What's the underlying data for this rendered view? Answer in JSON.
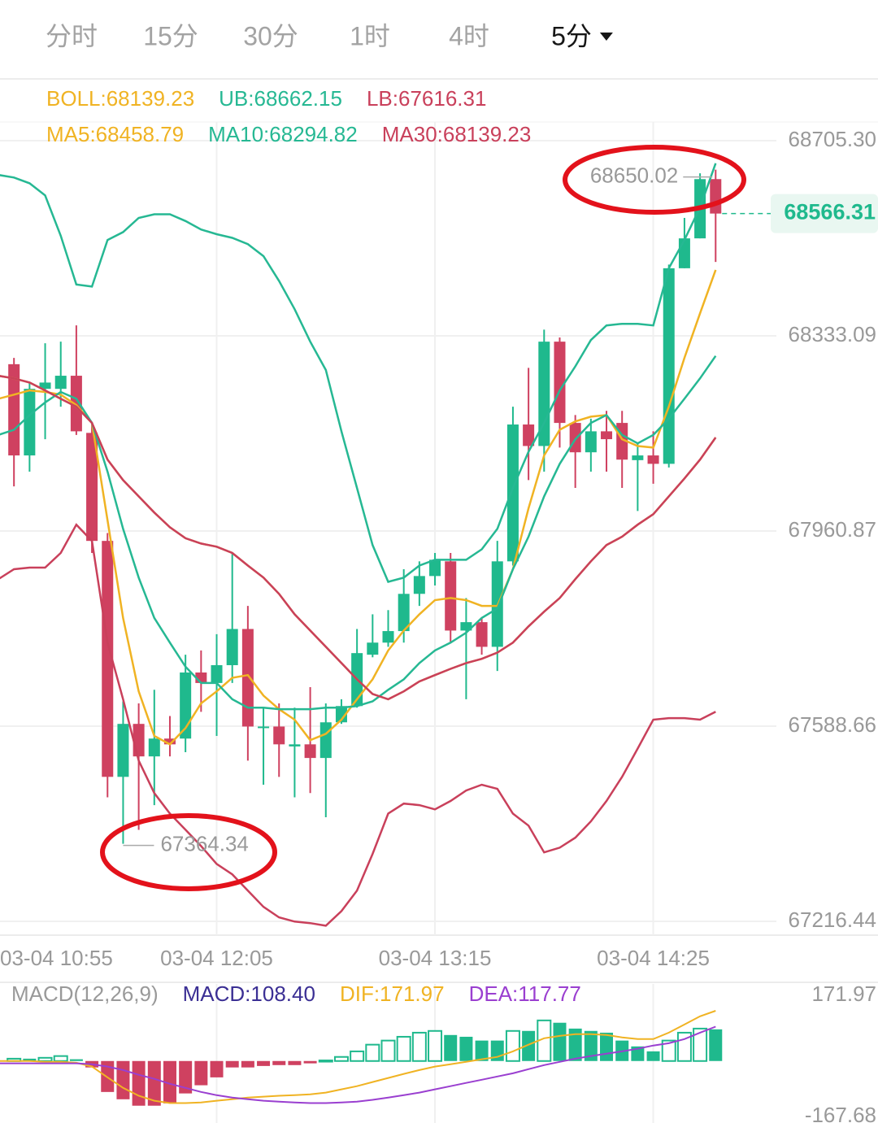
{
  "tabs": [
    {
      "label": "分时"
    },
    {
      "label": "15分"
    },
    {
      "label": "30分"
    },
    {
      "label": "1时"
    },
    {
      "label": "4时"
    },
    {
      "label": "5分",
      "active": true
    }
  ],
  "chart_data": [
    {
      "type": "candlestick",
      "categories": [
        "03-04 10:55",
        null,
        null,
        null,
        null,
        null,
        null,
        null,
        null,
        null,
        null,
        null,
        null,
        null,
        "03-04 12:05",
        null,
        null,
        null,
        null,
        null,
        null,
        null,
        null,
        null,
        null,
        null,
        null,
        null,
        "03-04 13:15",
        null,
        null,
        null,
        null,
        null,
        null,
        null,
        null,
        null,
        null,
        null,
        null,
        null,
        "03-04 14:25",
        null,
        null,
        null,
        null
      ],
      "open": [
        null,
        68279,
        68105,
        68232,
        68232,
        68257,
        68148,
        67942,
        67492,
        67593,
        67531,
        67565,
        67565,
        67691,
        67671,
        67705,
        67774,
        67585,
        67588,
        67550,
        67554,
        67528,
        67596,
        67627,
        67725,
        67748,
        67770,
        67841,
        67875,
        67903,
        67771,
        67787,
        67740,
        67903,
        68164,
        68123,
        68322,
        68167,
        68111,
        68151,
        68167,
        68096,
        68105,
        68089,
        68462,
        68519,
        68632
      ],
      "high": [
        null,
        68291,
        68244,
        68319,
        68322,
        68353,
        68167,
        67957,
        67636,
        67632,
        67658,
        67608,
        67725,
        67733,
        67764,
        67919,
        67818,
        67624,
        67632,
        67624,
        67663,
        67632,
        67640,
        67774,
        67802,
        67810,
        67888,
        67903,
        67919,
        67919,
        67833,
        67795,
        67942,
        68198,
        68272,
        68345,
        68330,
        68182,
        68175,
        68190,
        68190,
        68128,
        68151,
        68469,
        68558,
        68643,
        68650.02
      ],
      "low": [
        null,
        68046,
        68074,
        68136,
        68198,
        68144,
        67919,
        67453,
        67364.34,
        67391,
        67438,
        67531,
        67539,
        67616,
        67570,
        67671,
        67523,
        67477,
        67492,
        67453,
        67461,
        67415,
        67593,
        67624,
        67720,
        67740,
        67748,
        67818,
        67857,
        67748,
        67640,
        67725,
        67694,
        67895,
        68058,
        68074,
        68120,
        68043,
        68074,
        68074,
        68043,
        67999,
        68051,
        68082,
        68462,
        68519,
        68474
      ],
      "close": [
        null,
        68105,
        68232,
        68244,
        68257,
        68151,
        67942,
        67492,
        67593,
        67531,
        67565,
        67554,
        67691,
        67671,
        67705,
        67774,
        67588,
        67588,
        67554,
        67554,
        67528,
        67596,
        67627,
        67728,
        67748,
        67770,
        67841,
        67875,
        67906,
        67771,
        67787,
        67740,
        67903,
        68164,
        68123,
        68322,
        68167,
        68111,
        68151,
        68136,
        68097,
        68105,
        68089,
        68462,
        68519,
        68632,
        68566.31
      ],
      "up_color": "#1fb98d",
      "down_color": "#cf4160",
      "series": [
        {
          "name": "BOLL:68139.23",
          "color": "#f0b323",
          "values": [
            68257,
            68252,
            68244,
            68229,
            68213,
            68198,
            68167,
            68097,
            68058,
            68027,
            67996,
            67968,
            67947,
            67937,
            67931,
            67919,
            67895,
            67872,
            67841,
            67802,
            67771,
            67740,
            67709,
            67678,
            67650,
            67640,
            67655,
            67674,
            67686,
            67698,
            67709,
            67717,
            67729,
            67748,
            67779,
            67807,
            67833,
            67869,
            67903,
            67934,
            67950,
            67973,
            67993,
            68027,
            68061,
            68097,
            68139.23
          ]
        },
        {
          "name": "UB:68662.15",
          "color": "#26b893",
          "values": [
            68640,
            68635,
            68624,
            68601,
            68524,
            68431,
            68427,
            68516,
            68531,
            68558,
            68565,
            68565,
            68552,
            68536,
            68527,
            68520,
            68508,
            68485,
            68438,
            68384,
            68322,
            68268,
            68151,
            68043,
            67934,
            67864,
            67872,
            67895,
            67906,
            67906,
            67906,
            67926,
            67965,
            68043,
            68112,
            68167,
            68229,
            68275,
            68325,
            68353,
            68356,
            68356,
            68353,
            68462,
            68516,
            68578,
            68662.15
          ]
        },
        {
          "name": "LB:67616.31",
          "color": "#c9405b",
          "values": [
            67869,
            67888,
            67891,
            67891,
            67919,
            67973,
            67942,
            67748,
            67640,
            67523,
            67461,
            67422,
            67391,
            67360,
            67326,
            67306,
            67275,
            67244,
            67224,
            67216,
            67213,
            67208,
            67236,
            67275,
            67345,
            67422,
            67441,
            67438,
            67430,
            67446,
            67466,
            67477,
            67469,
            67422,
            67399,
            67348,
            67357,
            67376,
            67407,
            67446,
            67492,
            67546,
            67601,
            67604,
            67604,
            67601,
            67616.31
          ]
        },
        {
          "name": "MA5:68458.79",
          "color": "#f0b323",
          "values": [
            68213,
            68221,
            68229,
            68226,
            68221,
            68201,
            68167,
            67981,
            67795,
            67655,
            67570,
            67554,
            67585,
            67632,
            67655,
            67681,
            67686,
            67647,
            67621,
            67601,
            67562,
            67574,
            67601,
            67640,
            67678,
            67733,
            67771,
            67802,
            67829,
            67833,
            67829,
            67818,
            67818,
            67888,
            68004,
            68105,
            68154,
            68170,
            68179,
            68182,
            68136,
            68123,
            68120,
            68198,
            68291,
            68376,
            68458.79
          ]
        },
        {
          "name": "MA10:68294.82",
          "color": "#26b893",
          "values": [
            68144,
            68154,
            68182,
            68206,
            68226,
            68213,
            68167,
            68074,
            67965,
            67872,
            67795,
            67748,
            67702,
            67671,
            67671,
            67640,
            67624,
            67624,
            67621,
            67621,
            67621,
            67624,
            67624,
            67627,
            67636,
            67658,
            67678,
            67709,
            67733,
            67748,
            67767,
            67795,
            67813,
            67888,
            67950,
            68027,
            68089,
            68136,
            68167,
            68182,
            68144,
            68128,
            68144,
            68175,
            68213,
            68252,
            68294.82
          ]
        },
        {
          "name": "MA30:68139.23",
          "color": "#c9405b",
          "values": [
            68257,
            68252,
            68244,
            68229,
            68213,
            68198,
            68167,
            68097,
            68058,
            68027,
            67996,
            67968,
            67947,
            67937,
            67931,
            67919,
            67895,
            67872,
            67841,
            67802,
            67771,
            67740,
            67709,
            67678,
            67650,
            67640,
            67655,
            67674,
            67686,
            67698,
            67709,
            67717,
            67729,
            67748,
            67779,
            67807,
            67833,
            67869,
            67903,
            67934,
            67950,
            67973,
            67993,
            68027,
            68061,
            68097,
            68139.23
          ]
        }
      ],
      "ylim": [
        67190.07,
        68740.97
      ],
      "yticks": [
        {
          "value": 68705.3,
          "label": "68705.30"
        },
        68333.09,
        67960.87,
        67588.66,
        67216.44
      ],
      "grid": true
    },
    {
      "type": "macd",
      "title": "MACD(12,26,9)",
      "series": [
        {
          "name": "MACD:108.40",
          "type": "bar",
          "label_color": "#3b2f94",
          "color": "#1fb98d",
          "negative_color": "#cf4160",
          "values": [
            null,
            8,
            8,
            11,
            17,
            6,
            -22,
            -106,
            -131,
            -153,
            -153,
            -145,
            -111,
            -83,
            -56,
            -22,
            -22,
            -17,
            -14,
            -14,
            -8,
            2,
            14,
            33,
            56,
            70,
            83,
            97,
            103,
            89,
            83,
            70,
            70,
            103,
            103,
            139,
            131,
            111,
            103,
            97,
            70,
            50,
            33,
            70,
            97,
            111,
            108.4
          ]
        },
        {
          "name": "DIF:171.97",
          "type": "line",
          "color": "#f0b323",
          "values": [
            0,
            0,
            0,
            -3,
            -3,
            -6,
            -19,
            -56,
            -92,
            -119,
            -136,
            -144,
            -144,
            -142,
            -136,
            -131,
            -125,
            -122,
            -119,
            -117,
            -114,
            -108,
            -97,
            -86,
            -72,
            -58,
            -44,
            -31,
            -19,
            -11,
            -3,
            6,
            14,
            33,
            56,
            78,
            86,
            92,
            92,
            89,
            81,
            75,
            75,
            97,
            125,
            153,
            171.97
          ]
        },
        {
          "name": "DEA:117.77",
          "type": "line",
          "color": "#9a3fd0",
          "values": [
            -8,
            -8,
            -8,
            -8,
            -8,
            -8,
            -11,
            -19,
            -31,
            -47,
            -61,
            -78,
            -92,
            -106,
            -117,
            -125,
            -131,
            -136,
            -139,
            -142,
            -144,
            -144,
            -142,
            -139,
            -133,
            -125,
            -117,
            -108,
            -97,
            -86,
            -75,
            -64,
            -53,
            -42,
            -28,
            -14,
            -3,
            8,
            17,
            25,
            33,
            42,
            53,
            61,
            75,
            97,
            117.77
          ]
        }
      ],
      "ylim": [
        -167.68,
        171.97
      ],
      "yticks": [
        171.97,
        -167.68
      ]
    }
  ]
}
